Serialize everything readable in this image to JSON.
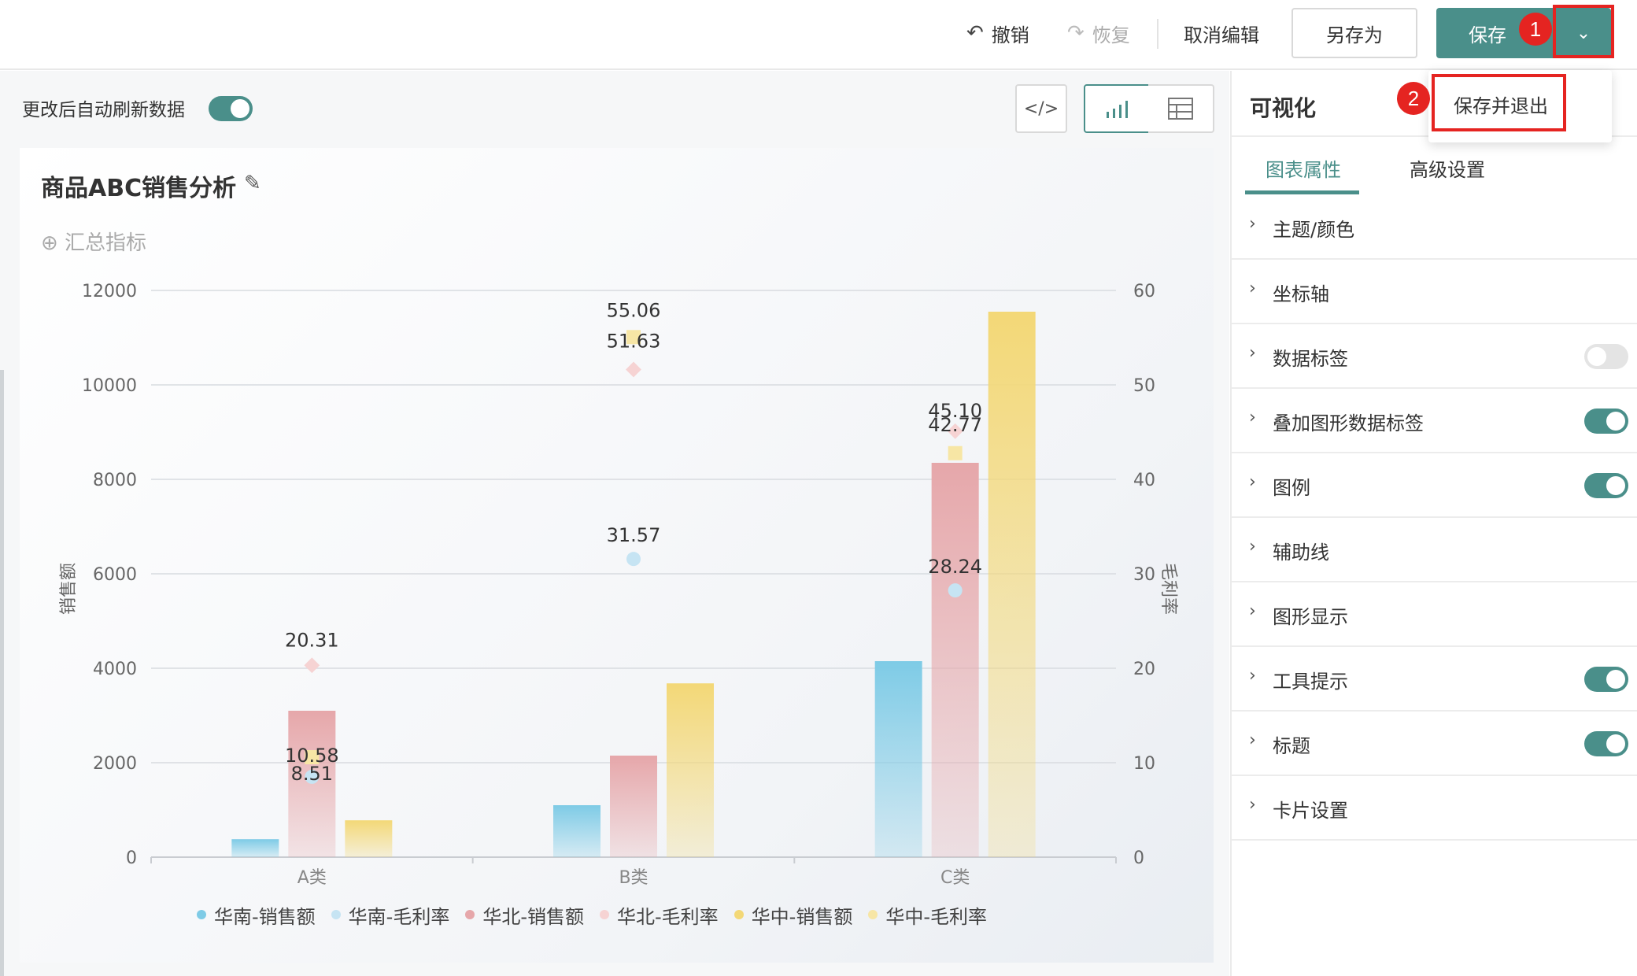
{
  "toolbar": {
    "undo_label": "撤销",
    "redo_label": "恢复",
    "cancel_edit_label": "取消编辑",
    "save_as_label": "另存为",
    "save_label": "保存"
  },
  "dropdown": {
    "save_and_exit_label": "保存并退出"
  },
  "badges": {
    "one": "1",
    "two": "2"
  },
  "left": {
    "auto_refresh_label": "更改后自动刷新数据",
    "auto_refresh_on": true
  },
  "card": {
    "title": "商品ABC销售分析",
    "summary_label": "⊕ 汇总指标"
  },
  "panel": {
    "title": "可视化",
    "tabs": [
      "图表属性",
      "高级设置"
    ],
    "items": [
      {
        "label": "主题/颜色",
        "toggle": null
      },
      {
        "label": "坐标轴",
        "toggle": null
      },
      {
        "label": "数据标签",
        "toggle": false
      },
      {
        "label": "叠加图形数据标签",
        "toggle": true
      },
      {
        "label": "图例",
        "toggle": true
      },
      {
        "label": "辅助线",
        "toggle": null
      },
      {
        "label": "图形显示",
        "toggle": null
      },
      {
        "label": "工具提示",
        "toggle": true
      },
      {
        "label": "标题",
        "toggle": true
      },
      {
        "label": "卡片设置",
        "toggle": null
      }
    ]
  },
  "chart_data": {
    "type": "bar",
    "categories": [
      "A类",
      "B类",
      "C类"
    ],
    "ylabel": "销售额",
    "y2label": "毛利率",
    "ylim": [
      0,
      12000
    ],
    "y2lim": [
      0,
      60
    ],
    "yticks": [
      0,
      2000,
      4000,
      6000,
      8000,
      10000,
      12000
    ],
    "y2ticks": [
      0,
      10,
      20,
      30,
      40,
      50,
      60
    ],
    "series": [
      {
        "name": "华南-销售额",
        "kind": "bar",
        "axis": "left",
        "color": "#7ecbe6",
        "values": [
          380,
          1100,
          4150
        ]
      },
      {
        "name": "华北-销售额",
        "kind": "bar",
        "axis": "left",
        "color": "#e6a7aa",
        "values": [
          3100,
          2150,
          8350
        ]
      },
      {
        "name": "华中-销售额",
        "kind": "bar",
        "axis": "left",
        "color": "#f3d877",
        "values": [
          780,
          3680,
          11550
        ]
      },
      {
        "name": "华南-毛利率",
        "kind": "point",
        "axis": "right",
        "color": "#c6e4f3",
        "marker": "circle",
        "values": [
          8.51,
          31.57,
          28.24
        ]
      },
      {
        "name": "华北-毛利率",
        "kind": "point",
        "axis": "right",
        "color": "#f6d3d3",
        "marker": "diamond",
        "values": [
          20.31,
          51.63,
          45.1
        ]
      },
      {
        "name": "华中-毛利率",
        "kind": "point",
        "axis": "right",
        "color": "#f7e6a5",
        "marker": "square",
        "values": [
          10.58,
          55.06,
          42.77
        ]
      }
    ],
    "point_labels": [
      {
        "text": "20.31",
        "category": 0,
        "value": 20.31
      },
      {
        "text": "10.58",
        "category": 0,
        "value": 10.58
      },
      {
        "text": "8.51",
        "category": 0,
        "value": 8.51
      },
      {
        "text": "55.06",
        "category": 1,
        "value": 55.06
      },
      {
        "text": "51.63",
        "category": 1,
        "value": 51.63
      },
      {
        "text": "31.57",
        "category": 1,
        "value": 31.57
      },
      {
        "text": "45.10",
        "category": 2,
        "value": 45.1
      },
      {
        "text": "42.77",
        "category": 2,
        "value": 42.77
      },
      {
        "text": "28.24",
        "category": 2,
        "value": 28.24
      }
    ],
    "legend": [
      {
        "name": "华南-销售额",
        "color": "#7ecbe6"
      },
      {
        "name": "华南-毛利率",
        "color": "#c6e4f3"
      },
      {
        "name": "华北-销售额",
        "color": "#e6a7aa"
      },
      {
        "name": "华北-毛利率",
        "color": "#f6d3d3"
      },
      {
        "name": "华中-销售额",
        "color": "#f3d877"
      },
      {
        "name": "华中-毛利率",
        "color": "#f7e6a5"
      }
    ],
    "legend_position": "bottom",
    "grid": true
  }
}
